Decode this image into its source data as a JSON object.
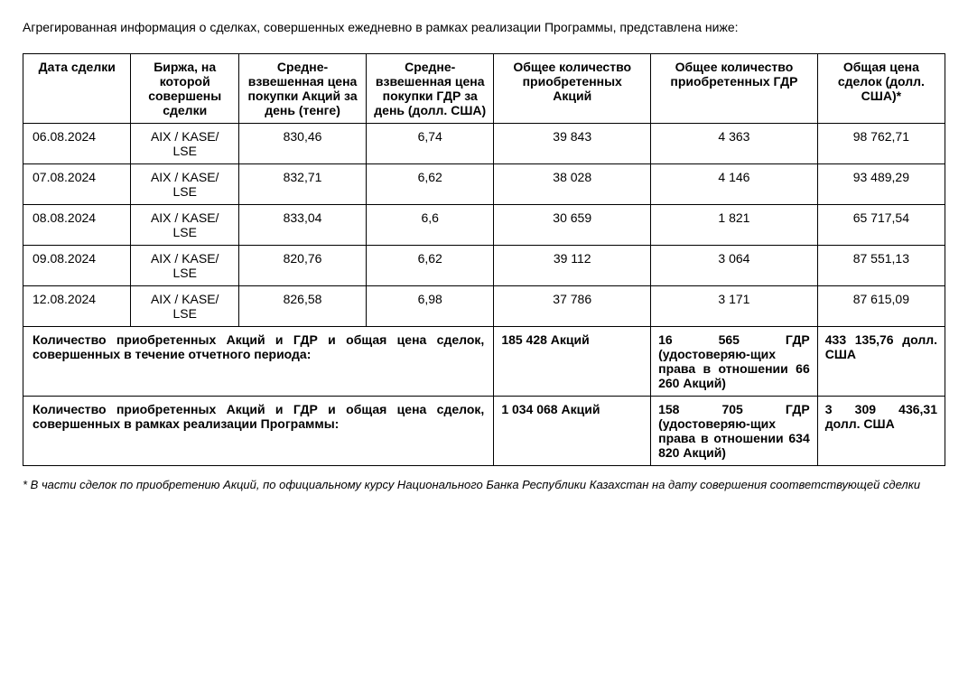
{
  "intro": "Агрегированная информация о сделках, совершенных ежедневно в рамках реализации Программы, представлена ниже:",
  "table": {
    "headers": {
      "date": "Дата сделки",
      "exchange": "Биржа, на которой совершены сделки",
      "avg_price_shares": "Средне-взвешенная цена покупки Акций за день (тенге)",
      "avg_price_gdr": "Средне-взвешенная цена покупки ГДР за день (долл. США)",
      "qty_shares": "Общее количество приобретенных Акций",
      "qty_gdr": "Общее количество приобретенных ГДР",
      "total_price": "Общая цена сделок (долл. США)*"
    },
    "rows": [
      {
        "date": "06.08.2024",
        "exchange": "AIX / KASE/ LSE",
        "avg_price_shares": "830,46",
        "avg_price_gdr": "6,74",
        "qty_shares": "39 843",
        "qty_gdr": "4 363",
        "total_price": "98 762,71"
      },
      {
        "date": "07.08.2024",
        "exchange": "AIX / KASE/ LSE",
        "avg_price_shares": "832,71",
        "avg_price_gdr": "6,62",
        "qty_shares": "38 028",
        "qty_gdr": "4 146",
        "total_price": "93 489,29"
      },
      {
        "date": "08.08.2024",
        "exchange": "AIX / KASE/ LSE",
        "avg_price_shares": "833,04",
        "avg_price_gdr": "6,6",
        "qty_shares": "30 659",
        "qty_gdr": "1 821",
        "total_price": "65 717,54"
      },
      {
        "date": "09.08.2024",
        "exchange": "AIX / KASE/ LSE",
        "avg_price_shares": "820,76",
        "avg_price_gdr": "6,62",
        "qty_shares": "39 112",
        "qty_gdr": "3 064",
        "total_price": "87 551,13"
      },
      {
        "date": "12.08.2024",
        "exchange": "AIX / KASE/ LSE",
        "avg_price_shares": "826,58",
        "avg_price_gdr": "6,98",
        "qty_shares": "37 786",
        "qty_gdr": "3 171",
        "total_price": "87 615,09"
      }
    ],
    "summary_period": {
      "label": "Количество приобретенных Акций и ГДР и общая цена сделок, совершенных в течение отчетного периода:",
      "shares": "185 428 Акций",
      "gdr": "16 565 ГДР (удостоверяю-щих права в отношении 66 260 Акций)",
      "total": "433 135,76 долл. США"
    },
    "summary_program": {
      "label": "Количество приобретенных Акций и ГДР и общая цена сделок, совершенных в рамках реализации Программы:",
      "shares": "1 034 068 Акций",
      "gdr": "158 705 ГДР (удостоверяю-щих права в отношении 634 820 Акций)",
      "total": "3 309 436,31 долл. США"
    }
  },
  "footnote": "* В части сделок по приобретению Акций, по официальному курсу Национального Банка Республики Казахстан на дату совершения соответствующей сделки"
}
